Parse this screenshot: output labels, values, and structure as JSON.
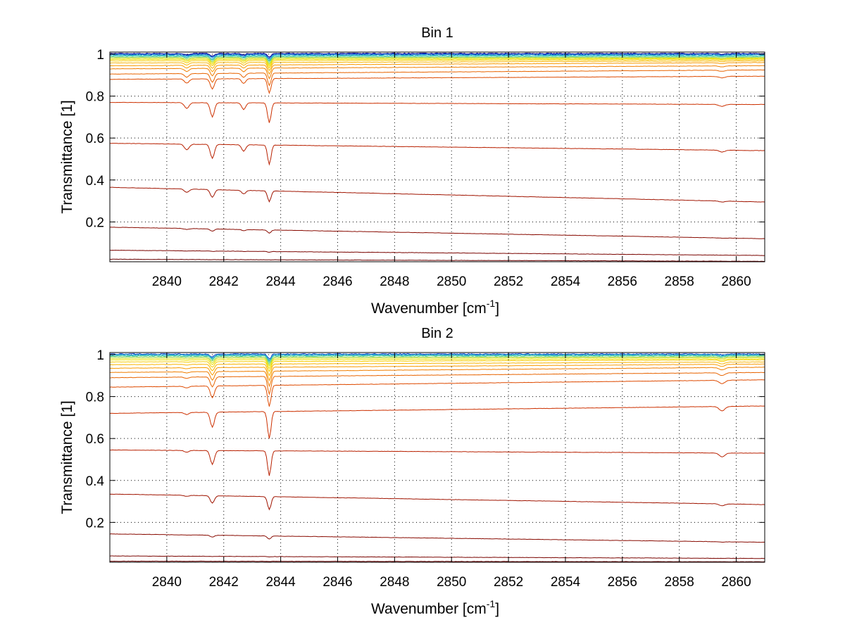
{
  "chart_data": [
    {
      "type": "line",
      "title": "Bin 1",
      "xlabel": "Wavenumber [cm",
      "xlabel_sup": "-1",
      "xlabel_end": "]",
      "ylabel": "Transmittance [1]",
      "xlim": [
        2838,
        2861
      ],
      "ylim": [
        0.01,
        1.01
      ],
      "xticks": [
        2840,
        2842,
        2844,
        2846,
        2848,
        2850,
        2852,
        2854,
        2856,
        2858,
        2860
      ],
      "yticks": [
        0.2,
        0.4,
        0.6,
        0.8,
        1
      ],
      "ytick_labels": [
        "0.2",
        "0.4",
        "0.6",
        "0.8",
        "1"
      ],
      "grid": true,
      "legend": "none",
      "absorption_lines": [
        {
          "x": 2840.7,
          "width": 0.08,
          "rel_depth": 0.035
        },
        {
          "x": 2841.6,
          "width": 0.07,
          "rel_depth": 0.085
        },
        {
          "x": 2842.7,
          "width": 0.07,
          "rel_depth": 0.04
        },
        {
          "x": 2843.6,
          "width": 0.06,
          "rel_depth": 0.12
        },
        {
          "x": 2859.5,
          "width": 0.1,
          "rel_depth": 0.012
        }
      ],
      "series": [
        {
          "start": 1.003,
          "end": 1.003,
          "color": "#00008f"
        },
        {
          "start": 1.0,
          "end": 1.0,
          "color": "#0c40c8"
        },
        {
          "start": 0.997,
          "end": 0.997,
          "color": "#1e90d8"
        },
        {
          "start": 0.993,
          "end": 0.993,
          "color": "#26b8c8"
        },
        {
          "start": 0.99,
          "end": 0.99,
          "color": "#4ccc9a"
        },
        {
          "start": 0.985,
          "end": 0.985,
          "color": "#90d860"
        },
        {
          "start": 0.98,
          "end": 0.982,
          "color": "#d4e020"
        },
        {
          "start": 0.975,
          "end": 0.978,
          "color": "#f0e000"
        },
        {
          "start": 0.968,
          "end": 0.974,
          "color": "#f6cc00"
        },
        {
          "start": 0.958,
          "end": 0.968,
          "color": "#f8b400"
        },
        {
          "start": 0.945,
          "end": 0.96,
          "color": "#f89a00"
        },
        {
          "start": 0.93,
          "end": 0.945,
          "color": "#f07e00"
        },
        {
          "start": 0.905,
          "end": 0.925,
          "color": "#e86400"
        },
        {
          "start": 0.88,
          "end": 0.895,
          "color": "#de4a00"
        },
        {
          "start": 0.77,
          "end": 0.76,
          "color": "#cc3000"
        },
        {
          "start": 0.575,
          "end": 0.54,
          "color": "#b82000"
        },
        {
          "start": 0.365,
          "end": 0.295,
          "color": "#a01400"
        },
        {
          "start": 0.175,
          "end": 0.12,
          "color": "#880a00"
        },
        {
          "start": 0.065,
          "end": 0.04,
          "color": "#7a0400"
        },
        {
          "start": 0.022,
          "end": 0.012,
          "color": "#6a0000"
        }
      ]
    },
    {
      "type": "line",
      "title": "Bin 2",
      "xlabel": "Wavenumber [cm",
      "xlabel_sup": "-1",
      "xlabel_end": "]",
      "ylabel": "Transmittance [1]",
      "xlim": [
        2838,
        2861
      ],
      "ylim": [
        0.01,
        1.01
      ],
      "xticks": [
        2840,
        2842,
        2844,
        2846,
        2848,
        2850,
        2852,
        2854,
        2856,
        2858,
        2860
      ],
      "yticks": [
        0.2,
        0.4,
        0.6,
        0.8,
        1
      ],
      "ytick_labels": [
        "0.2",
        "0.4",
        "0.6",
        "0.8",
        "1"
      ],
      "grid": true,
      "legend": "none",
      "absorption_lines": [
        {
          "x": 2840.7,
          "width": 0.08,
          "rel_depth": 0.012
        },
        {
          "x": 2841.6,
          "width": 0.07,
          "rel_depth": 0.09
        },
        {
          "x": 2843.6,
          "width": 0.06,
          "rel_depth": 0.16
        },
        {
          "x": 2859.5,
          "width": 0.1,
          "rel_depth": 0.025
        }
      ],
      "series": [
        {
          "start": 1.003,
          "end": 1.003,
          "color": "#0c40c8"
        },
        {
          "start": 1.0,
          "end": 1.0,
          "color": "#1e90d8"
        },
        {
          "start": 0.997,
          "end": 0.997,
          "color": "#26b8c8"
        },
        {
          "start": 0.993,
          "end": 0.995,
          "color": "#4ccc9a"
        },
        {
          "start": 0.988,
          "end": 0.99,
          "color": "#90d860"
        },
        {
          "start": 0.982,
          "end": 0.986,
          "color": "#d4e020"
        },
        {
          "start": 0.975,
          "end": 0.98,
          "color": "#f0e000"
        },
        {
          "start": 0.965,
          "end": 0.975,
          "color": "#f6cc00"
        },
        {
          "start": 0.952,
          "end": 0.965,
          "color": "#f8b400"
        },
        {
          "start": 0.935,
          "end": 0.955,
          "color": "#f89a00"
        },
        {
          "start": 0.915,
          "end": 0.94,
          "color": "#f07e00"
        },
        {
          "start": 0.89,
          "end": 0.915,
          "color": "#e86400"
        },
        {
          "start": 0.845,
          "end": 0.88,
          "color": "#de4a00"
        },
        {
          "start": 0.72,
          "end": 0.755,
          "color": "#cc3000"
        },
        {
          "start": 0.545,
          "end": 0.53,
          "color": "#b82000"
        },
        {
          "start": 0.335,
          "end": 0.285,
          "color": "#a01400"
        },
        {
          "start": 0.145,
          "end": 0.105,
          "color": "#880a00"
        },
        {
          "start": 0.04,
          "end": 0.028,
          "color": "#7a0400"
        },
        {
          "start": 0.015,
          "end": 0.012,
          "color": "#6a0000"
        }
      ]
    }
  ]
}
